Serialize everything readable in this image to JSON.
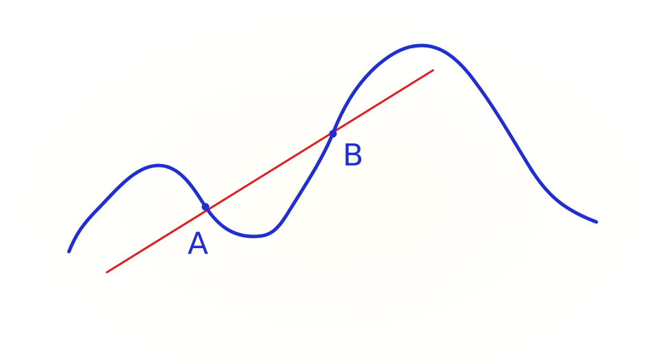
{
  "diagram": {
    "points": [
      {
        "id": "A",
        "label": "A"
      },
      {
        "id": "B",
        "label": "B"
      }
    ],
    "colors": {
      "curve": "#1f2fd0",
      "secant": "#dd1f1f",
      "background": "#ffffff"
    }
  }
}
